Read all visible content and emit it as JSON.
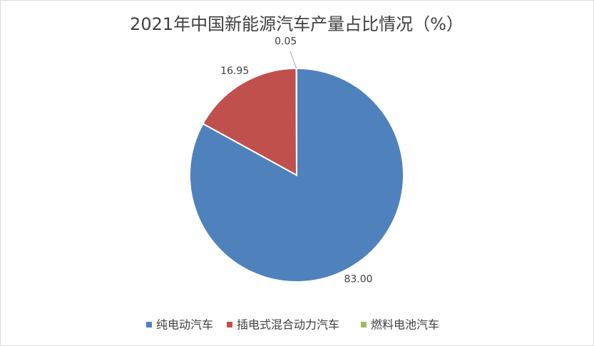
{
  "chart_data": {
    "type": "pie",
    "title": "2021年中国新能源汽车产量占比情况（%）",
    "categories": [
      "纯电动汽车",
      "插电式混合动力汽车",
      "燃料电池汽车"
    ],
    "values": [
      83.0,
      16.95,
      0.05
    ],
    "value_labels": [
      "83.00",
      "16.95",
      "0.05"
    ],
    "colors": [
      "#4f81bd",
      "#c0504d",
      "#9bbb59"
    ],
    "legend": "bottom"
  }
}
